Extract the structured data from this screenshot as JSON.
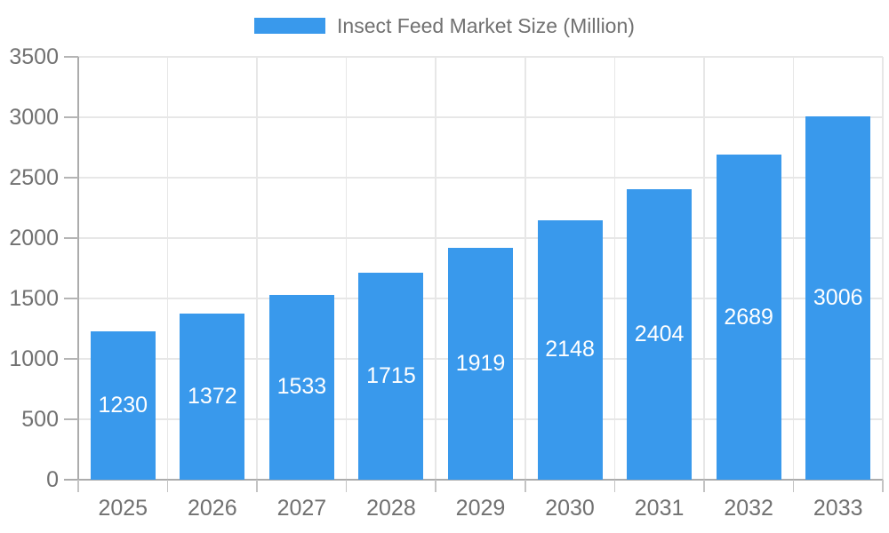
{
  "legend": {
    "label": "Insect Feed Market Size (Million)",
    "swatch_color": "#3999EC"
  },
  "chart_data": {
    "type": "bar",
    "title": "Insect Feed Market Size (Million)",
    "categories": [
      "2025",
      "2026",
      "2027",
      "2028",
      "2029",
      "2030",
      "2031",
      "2032",
      "2033"
    ],
    "values": [
      1230,
      1372,
      1533,
      1715,
      1919,
      2148,
      2404,
      2689,
      3006
    ],
    "xlabel": "",
    "ylabel": "",
    "ylim": [
      0,
      3500
    ],
    "ytick_step": 500,
    "ytick_labels": [
      "0",
      "500",
      "1000",
      "1500",
      "2000",
      "2500",
      "3000",
      "3500"
    ],
    "grid": true,
    "legend_position": "top",
    "bar_color": "#3999EC",
    "bar_label_color": "#FFFFFF",
    "bar_label_position": "inside-center"
  },
  "colors": {
    "background": "#FFFFFF",
    "grid": "#E7E7E7",
    "axis": "#ACACAC",
    "tick_label": "#717171",
    "bar": "#3999EC",
    "bar_label": "#FFFFFF"
  }
}
